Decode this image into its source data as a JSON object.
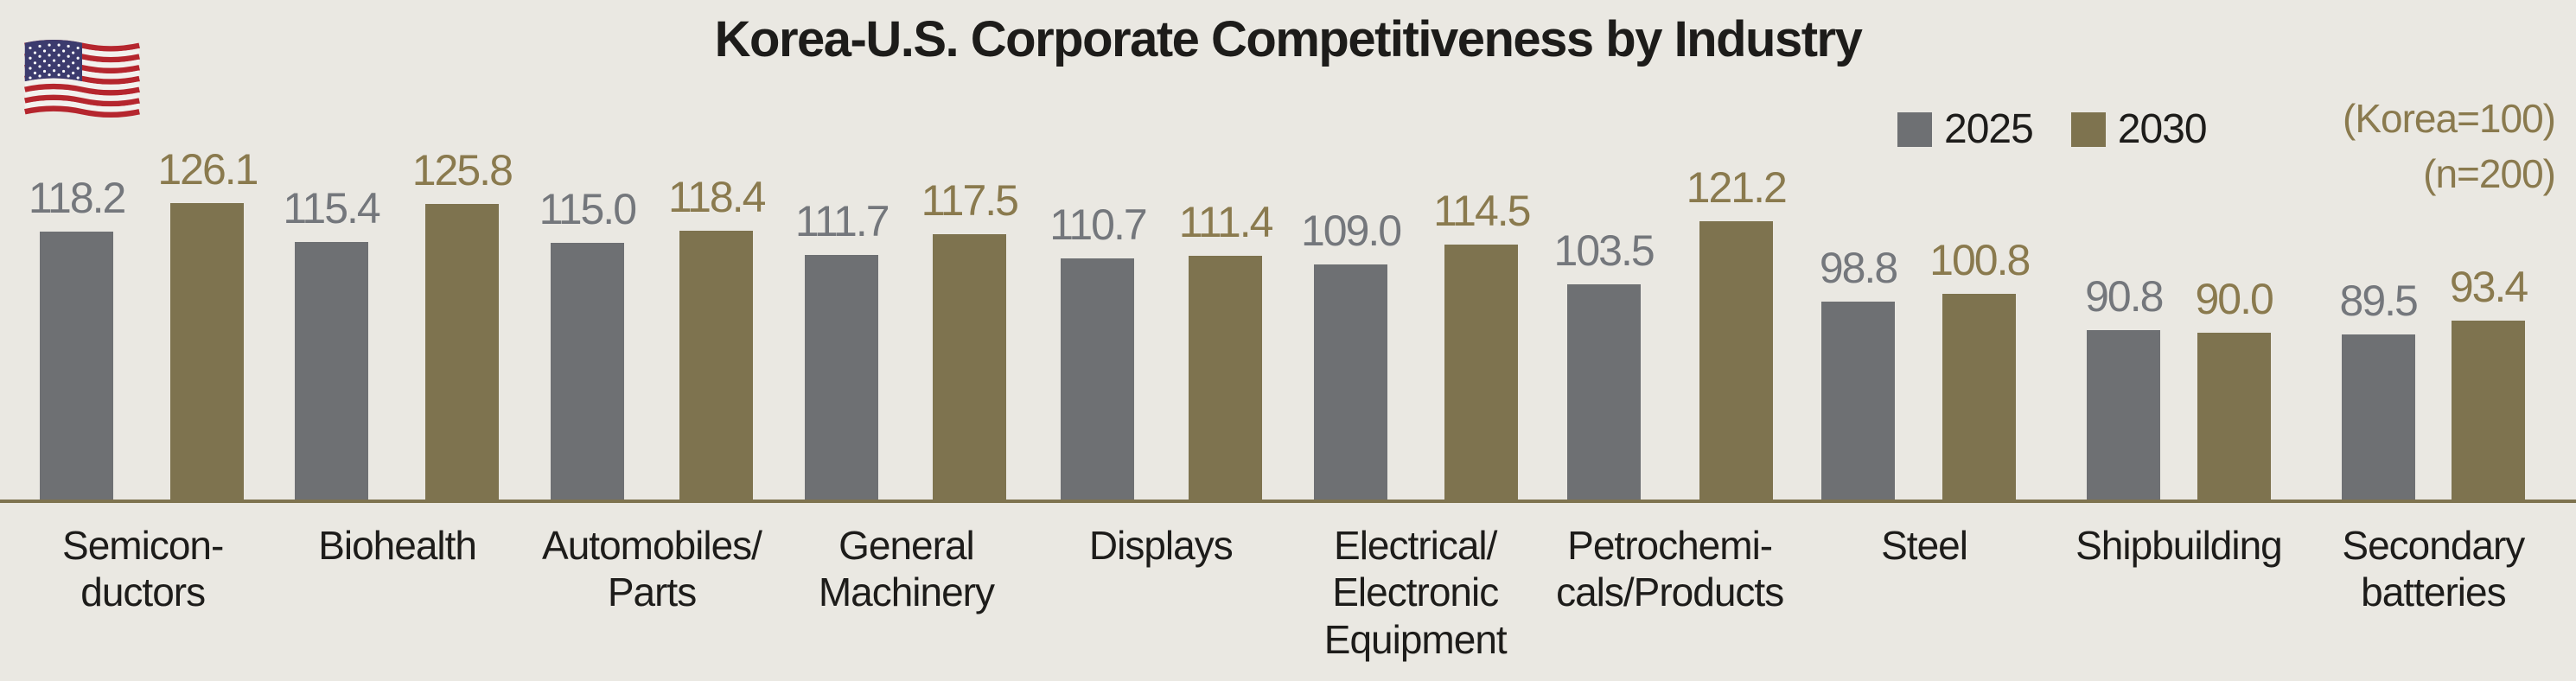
{
  "header": {
    "flag_icon": "us-flag"
  },
  "legend": {
    "items": [
      {
        "label": "2025",
        "color": "#6e7073"
      },
      {
        "label": "2030",
        "color": "#7e734f"
      }
    ]
  },
  "notes": {
    "korea_base": "(Korea=100)",
    "sample_size": "(n=200)"
  },
  "chart_data": {
    "type": "bar",
    "title": "Korea-U.S. Corporate Competitiveness by Industry",
    "categories": [
      "Semicon-\nductors",
      "Biohealth",
      "Automobiles/\nParts",
      "General\nMachinery",
      "Displays",
      "Electrical/\nElectronic\nEquipment",
      "Petrochemi-\ncals/Products",
      "Steel",
      "Shipbuilding",
      "Secondary\nbatteries"
    ],
    "series": [
      {
        "name": "2025",
        "color": "#6e7073",
        "label_color": "#74777c",
        "values": [
          118.2,
          115.4,
          115.0,
          111.7,
          110.7,
          109.0,
          103.5,
          98.8,
          90.8,
          89.5
        ]
      },
      {
        "name": "2030",
        "color": "#7e734f",
        "label_color": "#8a7a4e",
        "values": [
          126.1,
          125.8,
          118.4,
          117.5,
          111.4,
          114.5,
          121.2,
          100.8,
          90.0,
          93.4
        ]
      }
    ],
    "value_axis_note": "(Korea=100)",
    "sample_note": "(n=200)",
    "ylim": [
      43.5,
      130
    ],
    "grid": false,
    "legend_position": "top-right",
    "background": "#eae8e2"
  }
}
